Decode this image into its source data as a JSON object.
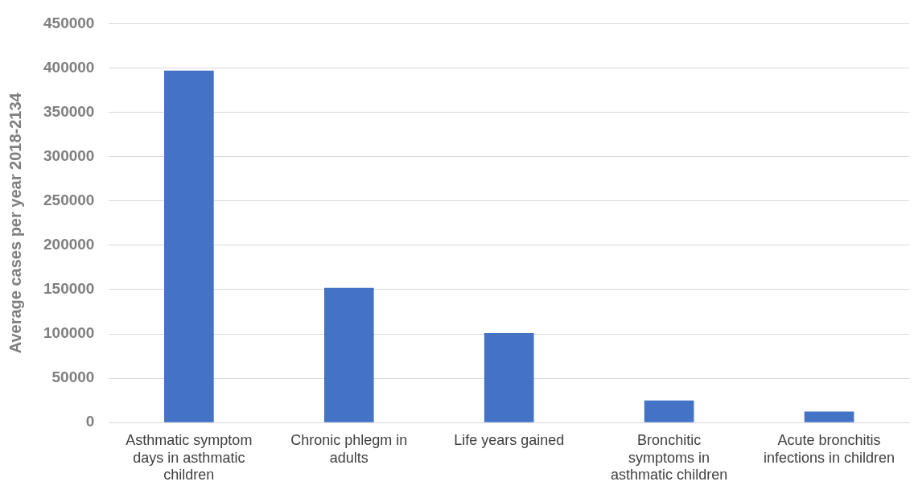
{
  "chart_data": {
    "type": "bar",
    "ylabel": "Average cases per year 2018-2134",
    "categories": [
      "Asthmatic symptom days in asthmatic children",
      "Chronic phlegm in adults",
      "Life years gained",
      "Bronchitic symptoms in asthmatic children",
      "Acute bronchitis infections in children"
    ],
    "values": [
      397000,
      152000,
      101000,
      25000,
      12500
    ],
    "color": "#4472c4",
    "ylim": [
      0,
      450000
    ],
    "yticks": [
      0,
      50000,
      100000,
      150000,
      200000,
      250000,
      300000,
      350000,
      400000,
      450000
    ],
    "grid": "y",
    "legend": false
  }
}
